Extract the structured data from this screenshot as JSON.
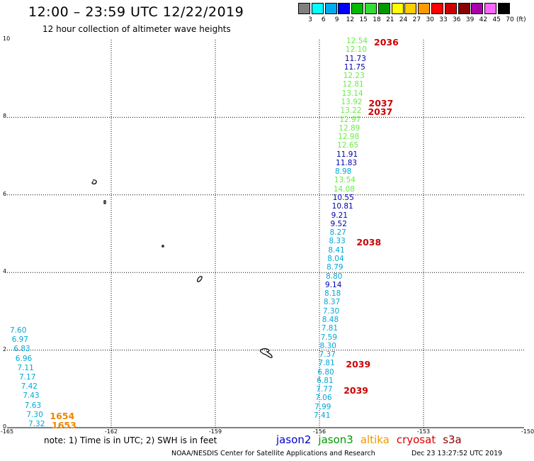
{
  "header": {
    "title": "12:00 – 23:59 UTC 12/22/2019",
    "subtitle": "12 hour collection of altimeter wave heights"
  },
  "colorbar": {
    "labels": [
      "3",
      "6",
      "9",
      "12",
      "15",
      "18",
      "21",
      "24",
      "27",
      "30",
      "33",
      "36",
      "39",
      "42",
      "45",
      "70"
    ],
    "colors": [
      "#808080",
      "#00ffff",
      "#00aaee",
      "#0000ff",
      "#00bb00",
      "#33dd33",
      "#009900",
      "#ffff00",
      "#ffcc00",
      "#ff9900",
      "#ff0000",
      "#cc0000",
      "#880000",
      "#aa00aa",
      "#ff66ff",
      "#000000"
    ],
    "unit": "(ft)"
  },
  "map": {
    "lon_min": -165,
    "lon_max": -150,
    "lat_min": 0,
    "lat_max": 10,
    "x_ticks": [
      "-165",
      "-162",
      "-159",
      "-156",
      "-153",
      "-150"
    ],
    "y_ticks": [
      "0",
      "2",
      "4",
      "6",
      "8",
      "10"
    ],
    "grid": true
  },
  "track_colors": {
    "cyan": "#00a8d8",
    "green": "#66ee44",
    "blue": "#0000aa",
    "red": "#cc0000",
    "orange": "#ee8800"
  },
  "observations": {
    "east_track": [
      {
        "v": "12.54",
        "c": "green"
      },
      {
        "v": "12.10",
        "c": "green"
      },
      {
        "v": "11.73",
        "c": "blue"
      },
      {
        "v": "11.75",
        "c": "blue"
      },
      {
        "v": "12.23",
        "c": "green"
      },
      {
        "v": "12.81",
        "c": "green"
      },
      {
        "v": "13.14",
        "c": "green"
      },
      {
        "v": "13.92",
        "c": "green"
      },
      {
        "v": "13.22",
        "c": "green"
      },
      {
        "v": "12.97",
        "c": "green"
      },
      {
        "v": "12.89",
        "c": "green"
      },
      {
        "v": "12.98",
        "c": "green"
      },
      {
        "v": "12.65",
        "c": "green"
      },
      {
        "v": "11.91",
        "c": "blue"
      },
      {
        "v": "11.83",
        "c": "blue"
      },
      {
        "v": "8.98",
        "c": "cyan"
      },
      {
        "v": "13.54",
        "c": "green"
      },
      {
        "v": "14.08",
        "c": "green"
      },
      {
        "v": "10.55",
        "c": "blue"
      },
      {
        "v": "10.81",
        "c": "blue"
      },
      {
        "v": "9.21",
        "c": "blue"
      },
      {
        "v": "9.52",
        "c": "blue"
      },
      {
        "v": "8.27",
        "c": "cyan"
      },
      {
        "v": "8.33",
        "c": "cyan"
      },
      {
        "v": "8.41",
        "c": "cyan"
      },
      {
        "v": "8.04",
        "c": "cyan"
      },
      {
        "v": "8.79",
        "c": "cyan"
      },
      {
        "v": "8.80",
        "c": "cyan"
      },
      {
        "v": "9.14",
        "c": "blue"
      },
      {
        "v": "8.18",
        "c": "cyan"
      },
      {
        "v": "8.37",
        "c": "cyan"
      },
      {
        "v": "7.30",
        "c": "cyan"
      },
      {
        "v": "8.48",
        "c": "cyan"
      },
      {
        "v": "7.81",
        "c": "cyan"
      },
      {
        "v": "7.59",
        "c": "cyan"
      },
      {
        "v": "8.30",
        "c": "cyan"
      },
      {
        "v": "7.37",
        "c": "cyan"
      },
      {
        "v": "7.81",
        "c": "cyan"
      },
      {
        "v": "6.80",
        "c": "cyan"
      },
      {
        "v": "6.81",
        "c": "cyan"
      },
      {
        "v": "7.77",
        "c": "cyan"
      },
      {
        "v": "7.06",
        "c": "cyan"
      },
      {
        "v": "7.99",
        "c": "cyan"
      },
      {
        "v": "7.41",
        "c": "cyan"
      }
    ],
    "west_track": [
      {
        "v": "7.60",
        "c": "cyan"
      },
      {
        "v": "6.97",
        "c": "cyan"
      },
      {
        "v": "6.83",
        "c": "cyan"
      },
      {
        "v": "6.96",
        "c": "cyan"
      },
      {
        "v": "7.11",
        "c": "cyan"
      },
      {
        "v": "7.17",
        "c": "cyan"
      },
      {
        "v": "7.42",
        "c": "cyan"
      },
      {
        "v": "7.43",
        "c": "cyan"
      },
      {
        "v": "7.63",
        "c": "cyan"
      },
      {
        "v": "7.30",
        "c": "cyan"
      },
      {
        "v": "7.32",
        "c": "cyan"
      }
    ],
    "time_tags": [
      {
        "t": "2036",
        "c": "red",
        "i": 0,
        "track": "east"
      },
      {
        "t": "2037",
        "c": "red",
        "i": 7,
        "track": "east"
      },
      {
        "t": "2037",
        "c": "red",
        "i": 8,
        "track": "east"
      },
      {
        "t": "2038",
        "c": "red",
        "i": 23,
        "track": "east"
      },
      {
        "t": "2039",
        "c": "red",
        "i": 37,
        "track": "east"
      },
      {
        "t": "2039",
        "c": "red",
        "i": 40,
        "track": "east"
      },
      {
        "t": "1654",
        "c": "orange",
        "i": 9,
        "track": "west"
      },
      {
        "t": "1653",
        "c": "orange",
        "i": 10,
        "track": "west"
      }
    ]
  },
  "footer": {
    "note": "note:  1) Time is in UTC;  2) SWH is in feet",
    "legend": [
      {
        "label": "jason2",
        "color": "#0000cc"
      },
      {
        "label": "jason3",
        "color": "#009900"
      },
      {
        "label": "altika",
        "color": "#ee9900"
      },
      {
        "label": "cryosat",
        "color": "#dd0000"
      },
      {
        "label": "s3a",
        "color": "#880000"
      }
    ],
    "credit": "NOAA/NESDIS Center for Satellite Applications and Research",
    "timestamp": "Dec 23 13:27:52 UTC 2019"
  }
}
